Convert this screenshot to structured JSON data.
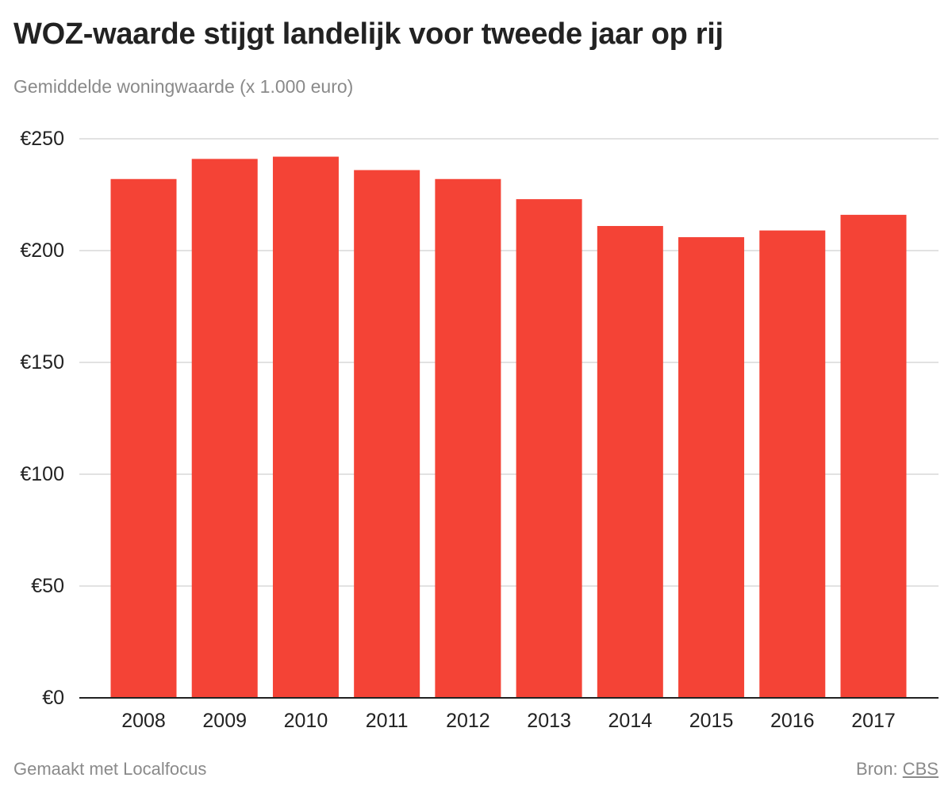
{
  "header": {
    "title": "WOZ-waarde stijgt landelijk voor tweede jaar op rij",
    "subtitle": "Gemiddelde woningwaarde (x 1.000 euro)"
  },
  "footer": {
    "made_with": "Gemaakt met Localfocus",
    "source_label": "Bron:",
    "source_link": "CBS"
  },
  "colors": {
    "bar": "#f44336",
    "grid": "#d9d9d9",
    "axis": "#222222",
    "tick_text": "#222222"
  },
  "chart_data": {
    "type": "bar",
    "categories": [
      "2008",
      "2009",
      "2010",
      "2011",
      "2012",
      "2013",
      "2014",
      "2015",
      "2016",
      "2017"
    ],
    "series": [
      {
        "values": [
          232,
          241,
          242,
          236,
          232,
          223,
          211,
          206,
          209,
          216
        ]
      }
    ],
    "title": "WOZ-waarde stijgt landelijk voor tweede jaar op rij",
    "subtitle": "Gemiddelde woningwaarde (x 1.000 euro)",
    "xlabel": "",
    "ylabel": "",
    "ylim": [
      0,
      250
    ],
    "yticks": [
      0,
      50,
      100,
      150,
      200,
      250
    ],
    "ytick_labels": [
      "€0",
      "€50",
      "€100",
      "€150",
      "€200",
      "€250"
    ],
    "grid": true,
    "legend": "none"
  }
}
